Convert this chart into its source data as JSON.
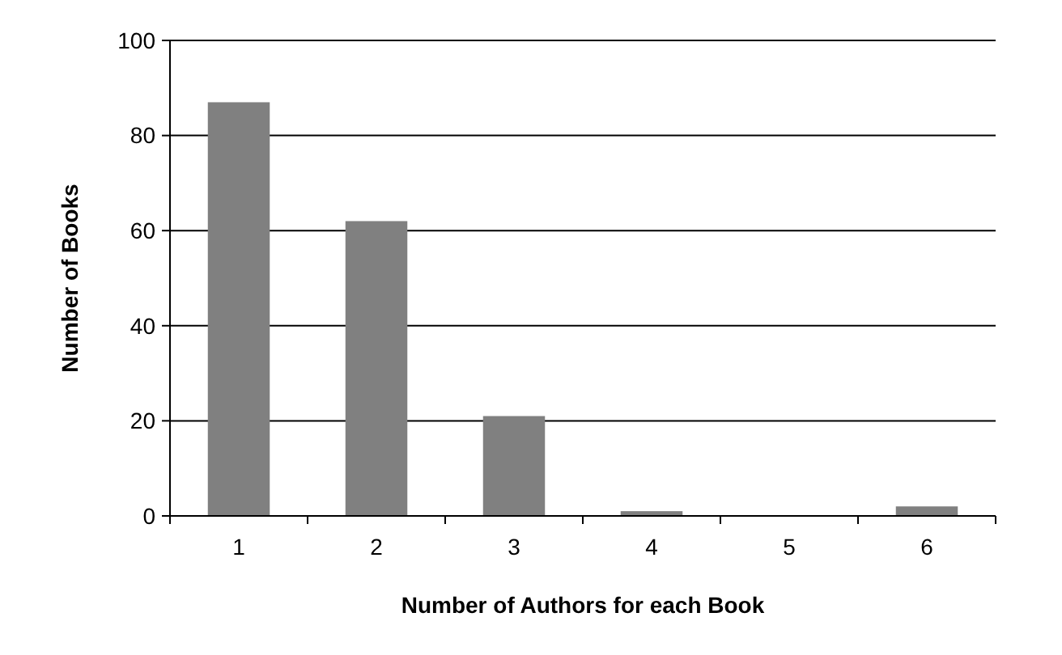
{
  "chart_data": {
    "type": "bar",
    "xlabel": "Number of Authors for each Book",
    "ylabel": "Number of Books",
    "categories": [
      "1",
      "2",
      "3",
      "4",
      "5",
      "6"
    ],
    "values": [
      87,
      62,
      21,
      1,
      0,
      2
    ],
    "color": "#808080",
    "ylim": [
      0,
      100
    ],
    "yticks": [
      0,
      20,
      40,
      60,
      80,
      100
    ],
    "grid": "y"
  }
}
